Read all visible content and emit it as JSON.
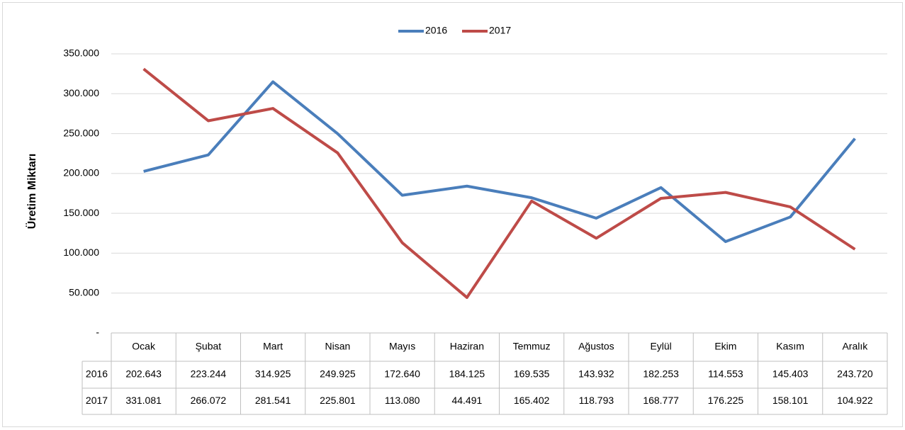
{
  "chart_data": {
    "type": "line",
    "y_label": "Üretim Miktarı",
    "categories": [
      "Ocak",
      "Şubat",
      "Mart",
      "Nisan",
      "Mayıs",
      "Haziran",
      "Temmuz",
      "Ağustos",
      "Eylül",
      "Ekim",
      "Kasım",
      "Aralık"
    ],
    "series": [
      {
        "name": "2016",
        "color": "#4a7ebb",
        "values": [
          202643,
          223244,
          314925,
          249925,
          172640,
          184125,
          169535,
          143932,
          182253,
          114553,
          145403,
          243720
        ],
        "value_labels": [
          "202.643",
          "223.244",
          "314.925",
          "249.925",
          "172.640",
          "184.125",
          "169.535",
          "143.932",
          "182.253",
          "114.553",
          "145.403",
          "243.720"
        ]
      },
      {
        "name": "2017",
        "color": "#be4b48",
        "values": [
          331081,
          266072,
          281541,
          225801,
          113080,
          44491,
          165402,
          118793,
          168777,
          176225,
          158101,
          104922
        ],
        "value_labels": [
          "331.081",
          "266.072",
          "281.541",
          "225.801",
          "113.080",
          "44.491",
          "165.402",
          "118.793",
          "168.777",
          "176.225",
          "158.101",
          "104.922"
        ]
      }
    ],
    "ylim": [
      0,
      350000
    ],
    "yticks": [
      {
        "value": 0,
        "label": "-"
      },
      {
        "value": 50000,
        "label": "50.000"
      },
      {
        "value": 100000,
        "label": "100.000"
      },
      {
        "value": 150000,
        "label": "150.000"
      },
      {
        "value": 200000,
        "label": "200.000"
      },
      {
        "value": 250000,
        "label": "250.000"
      },
      {
        "value": 300000,
        "label": "300.000"
      },
      {
        "value": 350000,
        "label": "350.000"
      }
    ],
    "grid": true,
    "legend": "top"
  }
}
